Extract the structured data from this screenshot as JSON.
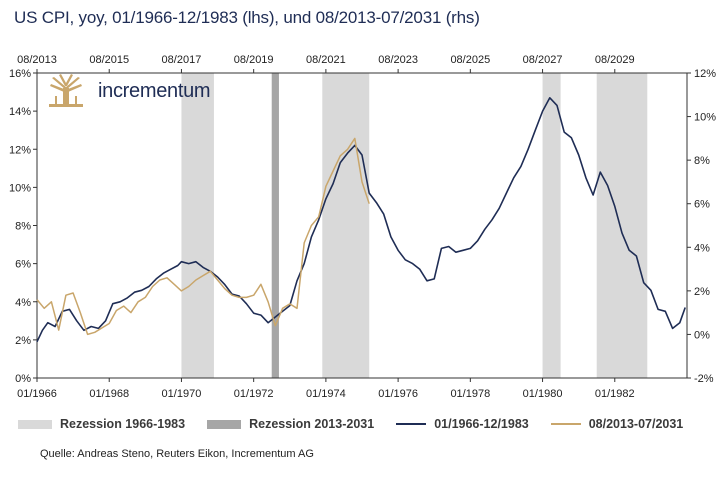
{
  "title": "US CPI, yoy, 01/1966-12/1983 (lhs), und 08/2013-07/2031 (rhs)",
  "source": "Quelle: Andreas Steno, Reuters Eikon, Incrementum AG",
  "logo_text": "incrementum",
  "colors": {
    "series_1966": "#1f2d55",
    "series_2013": "#c9a66b",
    "recession_1966": "#d9d9d9",
    "recession_2013": "#a6a6a6",
    "axis": "#333333"
  },
  "legend": {
    "recession_1966": "Rezession 1966-1983",
    "recession_2013": "Rezession 2013-2031",
    "series_1966": "01/1966-12/1983",
    "series_2013": "08/2013-07/2031"
  },
  "chart_data": {
    "type": "line",
    "bottom_axis": {
      "range": [
        1966.0,
        1984.0
      ],
      "ticks": [
        {
          "value": 1966.0,
          "label": "01/1966"
        },
        {
          "value": 1968.0,
          "label": "01/1968"
        },
        {
          "value": 1970.0,
          "label": "01/1970"
        },
        {
          "value": 1972.0,
          "label": "01/1972"
        },
        {
          "value": 1974.0,
          "label": "01/1974"
        },
        {
          "value": 1976.0,
          "label": "01/1976"
        },
        {
          "value": 1978.0,
          "label": "01/1978"
        },
        {
          "value": 1980.0,
          "label": "01/1980"
        },
        {
          "value": 1982.0,
          "label": "01/1982"
        }
      ]
    },
    "top_axis": {
      "ticks": [
        {
          "value": 1966.0,
          "label": "08/2013"
        },
        {
          "value": 1968.0,
          "label": "08/2015"
        },
        {
          "value": 1970.0,
          "label": "08/2017"
        },
        {
          "value": 1972.0,
          "label": "08/2019"
        },
        {
          "value": 1974.0,
          "label": "08/2021"
        },
        {
          "value": 1976.0,
          "label": "08/2023"
        },
        {
          "value": 1978.0,
          "label": "08/2025"
        },
        {
          "value": 1980.0,
          "label": "08/2027"
        },
        {
          "value": 1982.0,
          "label": "08/2029"
        }
      ]
    },
    "left_axis": {
      "range": [
        0,
        16
      ],
      "ticks": [
        0,
        2,
        4,
        6,
        8,
        10,
        12,
        14,
        16
      ],
      "labels": [
        "0%",
        "2%",
        "4%",
        "6%",
        "8%",
        "10%",
        "12%",
        "14%",
        "16%"
      ]
    },
    "right_axis": {
      "range": [
        -2,
        12
      ],
      "ticks": [
        -2,
        0,
        2,
        4,
        6,
        8,
        10,
        12
      ],
      "labels": [
        "-2%",
        "0%",
        "2%",
        "4%",
        "6%",
        "8%",
        "10%",
        "12%"
      ]
    },
    "recessions_1966": [
      [
        1970.0,
        1970.9
      ],
      [
        1973.9,
        1975.2
      ],
      [
        1980.0,
        1980.5
      ],
      [
        1981.5,
        1982.9
      ]
    ],
    "recessions_2013": [
      [
        1972.5,
        1972.7
      ]
    ],
    "series": [
      {
        "name": "01/1966-12/1983",
        "axis": "left",
        "x": [
          1966.0,
          1966.15,
          1966.3,
          1966.5,
          1966.7,
          1966.9,
          1967.1,
          1967.3,
          1967.5,
          1967.7,
          1967.9,
          1968.1,
          1968.3,
          1968.5,
          1968.7,
          1968.9,
          1969.1,
          1969.3,
          1969.5,
          1969.7,
          1969.9,
          1970.0,
          1970.2,
          1970.4,
          1970.6,
          1970.8,
          1971.0,
          1971.2,
          1971.4,
          1971.6,
          1971.8,
          1972.0,
          1972.2,
          1972.4,
          1972.6,
          1972.8,
          1973.0,
          1973.2,
          1973.4,
          1973.6,
          1973.8,
          1974.0,
          1974.2,
          1974.4,
          1974.6,
          1974.8,
          1975.0,
          1975.2,
          1975.4,
          1975.6,
          1975.8,
          1976.0,
          1976.2,
          1976.4,
          1976.6,
          1976.8,
          1977.0,
          1977.2,
          1977.4,
          1977.6,
          1977.8,
          1978.0,
          1978.2,
          1978.4,
          1978.6,
          1978.8,
          1979.0,
          1979.2,
          1979.4,
          1979.6,
          1979.8,
          1980.0,
          1980.2,
          1980.4,
          1980.6,
          1980.8,
          1981.0,
          1981.2,
          1981.4,
          1981.6,
          1981.8,
          1982.0,
          1982.2,
          1982.4,
          1982.6,
          1982.8,
          1983.0,
          1983.2,
          1983.4,
          1983.6,
          1983.8,
          1983.95
        ],
        "values": [
          1.9,
          2.5,
          2.9,
          2.7,
          3.5,
          3.6,
          3.0,
          2.5,
          2.7,
          2.6,
          3.0,
          3.9,
          4.0,
          4.2,
          4.5,
          4.6,
          4.8,
          5.2,
          5.5,
          5.7,
          5.9,
          6.1,
          6.0,
          6.1,
          5.8,
          5.6,
          5.3,
          4.9,
          4.4,
          4.3,
          3.9,
          3.4,
          3.3,
          2.9,
          3.2,
          3.5,
          3.8,
          5.1,
          6.0,
          7.4,
          8.3,
          9.4,
          10.2,
          11.3,
          11.8,
          12.2,
          11.7,
          9.7,
          9.2,
          8.6,
          7.4,
          6.7,
          6.2,
          6.0,
          5.7,
          5.1,
          5.2,
          6.8,
          6.9,
          6.6,
          6.7,
          6.8,
          7.2,
          7.8,
          8.3,
          8.9,
          9.7,
          10.5,
          11.1,
          12.0,
          13.0,
          14.0,
          14.7,
          14.3,
          12.9,
          12.6,
          11.7,
          10.5,
          9.6,
          10.8,
          10.1,
          9.0,
          7.6,
          6.7,
          6.4,
          5.0,
          4.6,
          3.6,
          3.5,
          2.6,
          2.9,
          3.7
        ]
      },
      {
        "name": "08/2013-07/2031",
        "axis": "right",
        "x": [
          1966.0,
          1966.2,
          1966.4,
          1966.6,
          1966.8,
          1967.0,
          1967.2,
          1967.4,
          1967.6,
          1967.8,
          1968.0,
          1968.2,
          1968.4,
          1968.6,
          1968.8,
          1969.0,
          1969.2,
          1969.4,
          1969.6,
          1969.8,
          1970.0,
          1970.2,
          1970.4,
          1970.6,
          1970.8,
          1971.0,
          1971.2,
          1971.4,
          1971.6,
          1971.8,
          1972.0,
          1972.2,
          1972.4,
          1972.6,
          1972.8,
          1973.0,
          1973.2,
          1973.4,
          1973.6,
          1973.8,
          1974.0,
          1974.2,
          1974.4,
          1974.6,
          1974.8,
          1975.0,
          1975.2
        ],
        "values": [
          1.6,
          1.2,
          1.5,
          0.2,
          1.8,
          1.9,
          1.0,
          0.0,
          0.1,
          0.3,
          0.5,
          1.1,
          1.3,
          1.0,
          1.5,
          1.7,
          2.2,
          2.5,
          2.6,
          2.3,
          2.0,
          2.2,
          2.5,
          2.7,
          2.9,
          2.5,
          2.1,
          1.8,
          1.7,
          1.7,
          1.8,
          2.3,
          1.5,
          0.4,
          1.2,
          1.4,
          1.2,
          4.2,
          5.0,
          5.4,
          6.8,
          7.5,
          8.2,
          8.5,
          9.0,
          7.0,
          6.0
        ]
      }
    ]
  }
}
